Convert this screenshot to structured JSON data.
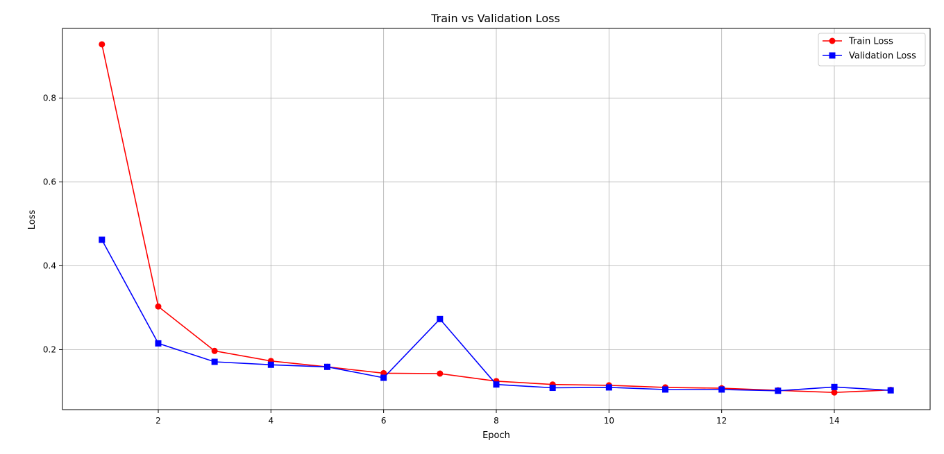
{
  "chart_data": {
    "type": "line",
    "title": "Train vs Validation Loss",
    "xlabel": "Epoch",
    "ylabel": "Loss",
    "xlim": [
      0.3,
      15.7
    ],
    "ylim": [
      0.057,
      0.966
    ],
    "x": [
      1,
      2,
      3,
      4,
      5,
      6,
      7,
      8,
      9,
      10,
      11,
      12,
      13,
      14,
      15
    ],
    "x_ticks": [
      2,
      4,
      6,
      8,
      10,
      12,
      14
    ],
    "x_tick_labels": [
      "2",
      "4",
      "6",
      "8",
      "10",
      "12",
      "14"
    ],
    "y_ticks": [
      0.2,
      0.4,
      0.6,
      0.8
    ],
    "y_tick_labels": [
      "0.2",
      "0.4",
      "0.6",
      "0.8"
    ],
    "grid": true,
    "legend_position": "top-right",
    "series": [
      {
        "name": "Train Loss",
        "color": "#ff0000",
        "marker": "circle",
        "values": [
          0.928,
          0.303,
          0.197,
          0.173,
          0.159,
          0.144,
          0.143,
          0.125,
          0.117,
          0.115,
          0.11,
          0.108,
          0.103,
          0.098,
          0.104
        ]
      },
      {
        "name": "Validation Loss",
        "color": "#0000ff",
        "marker": "square",
        "values": [
          0.462,
          0.215,
          0.171,
          0.164,
          0.159,
          0.133,
          0.273,
          0.117,
          0.109,
          0.11,
          0.105,
          0.105,
          0.102,
          0.111,
          0.103
        ]
      }
    ]
  }
}
